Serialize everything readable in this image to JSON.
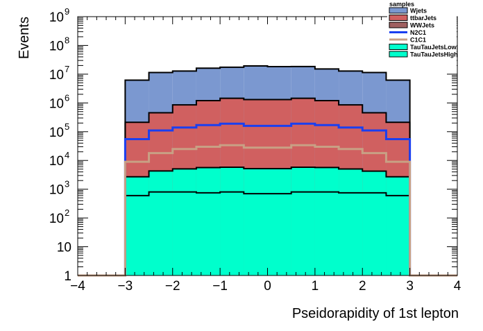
{
  "chart_data": {
    "type": "area",
    "xlabel": "Pseidorapidity of 1st lepton",
    "ylabel": "Events",
    "x_ticks": [
      "−4",
      "−3",
      "−2",
      "−1",
      "0",
      "1",
      "2",
      "3",
      "4"
    ],
    "y_ticks": [
      "1",
      "10",
      "10",
      "10",
      "10",
      "10",
      "10",
      "10",
      "10",
      "10"
    ],
    "y_tick_exponents": [
      "",
      "",
      "2",
      "3",
      "4",
      "5",
      "6",
      "7",
      "8",
      "9"
    ],
    "xlim": [
      -4,
      4
    ],
    "ylim": [
      1,
      1000000000
    ],
    "y_scale": "log",
    "legend": {
      "title": "samples",
      "placement": "top-right"
    },
    "bin_edges": [
      -3,
      -2.5,
      -2,
      -1.5,
      -1,
      -0.5,
      0,
      0.5,
      1,
      1.5,
      2,
      2.5,
      3
    ],
    "series": [
      {
        "name": "Wjets",
        "style": "stack",
        "color": "#7b98d0",
        "values": [
          6000000,
          11000000,
          12000000,
          15000000,
          16000000,
          18000000,
          17000000,
          17000000,
          14000000,
          12000000,
          11000000,
          6000000
        ]
      },
      {
        "name": "ttbarJets",
        "style": "stack",
        "color": "#d06060",
        "values": [
          210000,
          450000,
          850000,
          1200000,
          1450000,
          1300000,
          1300000,
          1450000,
          1200000,
          850000,
          450000,
          210000
        ]
      },
      {
        "name": "WWJets",
        "style": "stack",
        "color": "#a06060",
        "values": [
          0,
          0,
          0,
          0,
          0,
          0,
          0,
          0,
          0,
          0,
          0,
          0
        ]
      },
      {
        "name": "N2C1",
        "style": "line",
        "color": "#1a3ff0",
        "values": [
          55000,
          110000,
          140000,
          170000,
          190000,
          160000,
          160000,
          190000,
          170000,
          140000,
          110000,
          55000
        ]
      },
      {
        "name": "C1C1",
        "style": "line",
        "color": "#c8a084",
        "values": [
          9000,
          18000,
          25000,
          30000,
          34000,
          28000,
          28000,
          34000,
          30000,
          25000,
          18000,
          9000
        ]
      },
      {
        "name": "TauTauJetsLow",
        "style": "stack",
        "color": "#00ffcc",
        "values": [
          2100,
          3500,
          4300,
          4900,
          5000,
          4500,
          4500,
          5000,
          4900,
          4300,
          3500,
          2100
        ]
      },
      {
        "name": "TauTauJetsHigh",
        "style": "stack",
        "color": "#00ffcc",
        "values": [
          600,
          800,
          800,
          750,
          800,
          700,
          700,
          800,
          800,
          750,
          750,
          600
        ]
      }
    ]
  }
}
